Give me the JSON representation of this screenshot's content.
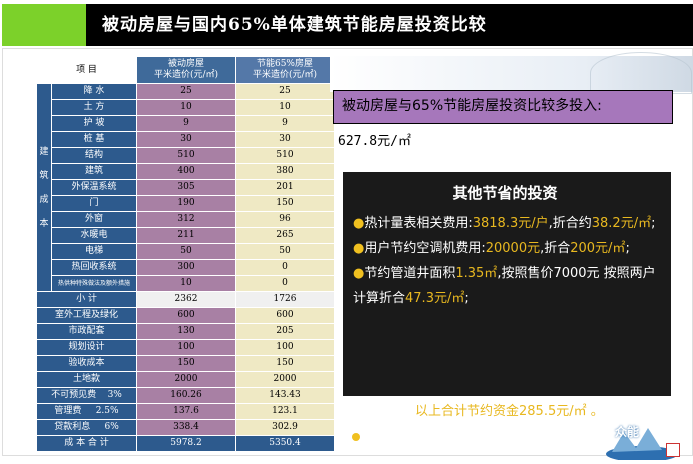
{
  "title": "被动房屋与国内65%单体建筑节能房屋投资比较",
  "table": {
    "header": {
      "item": "项  目",
      "passive": "被动房屋\n平米造价(元/㎡)",
      "energy": "节能65%房屋\n平米造价(元/㎡)"
    },
    "side_label": "建\n\n筑\n\n成\n\n本",
    "rows": [
      {
        "label": "降 水",
        "passive": "25",
        "energy": "25"
      },
      {
        "label": "土 方",
        "passive": "10",
        "energy": "10"
      },
      {
        "label": "护 坡",
        "passive": "9",
        "energy": "9"
      },
      {
        "label": "桩 基",
        "passive": "30",
        "energy": "30"
      },
      {
        "label": "结构",
        "passive": "510",
        "energy": "510"
      },
      {
        "label": "建筑",
        "passive": "400",
        "energy": "380"
      },
      {
        "label": "外保温系统",
        "passive": "305",
        "energy": "201"
      },
      {
        "label": "门",
        "passive": "190",
        "energy": "150"
      },
      {
        "label": "外窗",
        "passive": "312",
        "energy": "96"
      },
      {
        "label": "水暖电",
        "passive": "211",
        "energy": "265"
      },
      {
        "label": "电梯",
        "passive": "50",
        "energy": "50"
      },
      {
        "label": "热回收系统",
        "passive": "300",
        "energy": "0"
      },
      {
        "label": "热供种特殊做法及额外措施",
        "passive": "10",
        "energy": "0"
      }
    ],
    "subtotal": {
      "label": "小  计",
      "passive": "2362",
      "energy": "1726"
    },
    "extra_rows": [
      {
        "label": "室外工程及绿化",
        "passive": "600",
        "energy": "600"
      },
      {
        "label": "市政配套",
        "passive": "130",
        "energy": "205"
      },
      {
        "label": "规划设计",
        "passive": "100",
        "energy": "100"
      },
      {
        "label": "验收成本",
        "passive": "150",
        "energy": "150"
      },
      {
        "label": "土地款",
        "passive": "2000",
        "energy": "2000"
      },
      {
        "label": "不可预见费    3%",
        "passive": "160.26",
        "energy": "143.43"
      },
      {
        "label": "管理费     2.5%",
        "passive": "137.6",
        "energy": "123.1"
      },
      {
        "label": "贷款利息     6%",
        "passive": "338.4",
        "energy": "302.9"
      }
    ],
    "total": {
      "label": "成 本 合 计",
      "passive": "5978.2",
      "energy": "5350.4"
    }
  },
  "headline": "被动房屋与65%节能房屋投资比较多投入:",
  "headline_value": "627.8元/㎡",
  "savings": {
    "title": "其他节省的投资",
    "item1_pre": "热计量表相关费用:",
    "item1_val": "3818.3元/户",
    "item1_mid": ",折合约",
    "item1_val2": "38.2元/㎡",
    "item1_end": ";",
    "item2_pre": "用户节约空调机费用:",
    "item2_val": "20000元",
    "item2_mid": ",折合",
    "item2_val2": "200元/㎡",
    "item2_end": ";",
    "item3_pre": "节约管道井面积",
    "item3_val": "1.35㎡",
    "item3_mid": ",按照售价7000元 按照两户计算折合",
    "item3_val2": "47.3元/㎡",
    "item3_end": ";",
    "bullet": "●"
  },
  "summary": "以上合计节约资金285.5元/㎡ 。",
  "logo_text": "众能"
}
